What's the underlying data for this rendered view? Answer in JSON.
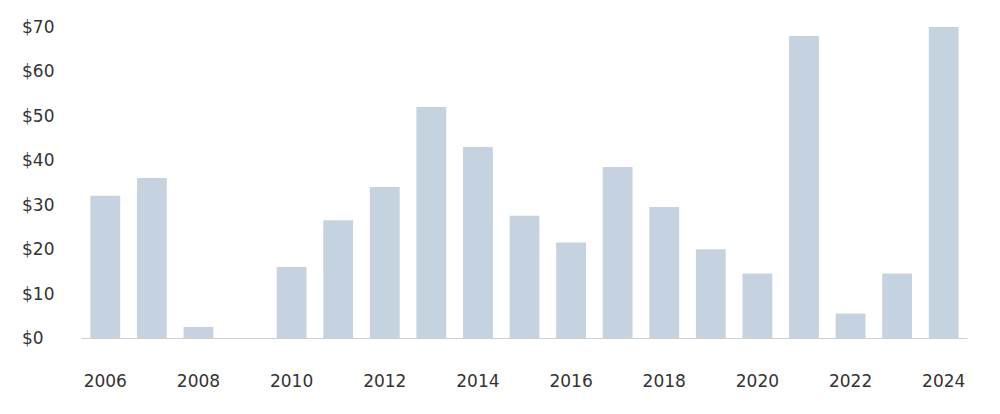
{
  "chart_data": {
    "type": "bar",
    "categories": [
      "2006",
      null,
      "2008",
      null,
      "2010",
      null,
      "2012",
      null,
      "2014",
      null,
      "2016",
      null,
      "2018",
      null,
      "2020",
      null,
      "2022",
      null,
      "2024"
    ],
    "values": [
      32,
      36,
      2.5,
      0,
      16,
      26.5,
      34,
      52,
      43,
      27.5,
      21.5,
      38.5,
      29.5,
      20,
      14.5,
      68,
      5.5,
      14.5,
      70
    ],
    "color": "#c5d3e0",
    "ylim": [
      0,
      70
    ],
    "yticks": [
      {
        "value": 0,
        "label": "$0"
      },
      {
        "value": 10,
        "label": "$10"
      },
      {
        "value": 20,
        "label": "$20"
      },
      {
        "value": 30,
        "label": "$30"
      },
      {
        "value": 40,
        "label": "$40"
      },
      {
        "value": 50,
        "label": "$50"
      },
      {
        "value": 60,
        "label": "$60"
      },
      {
        "value": 70,
        "label": "$70"
      }
    ],
    "grid": false
  }
}
